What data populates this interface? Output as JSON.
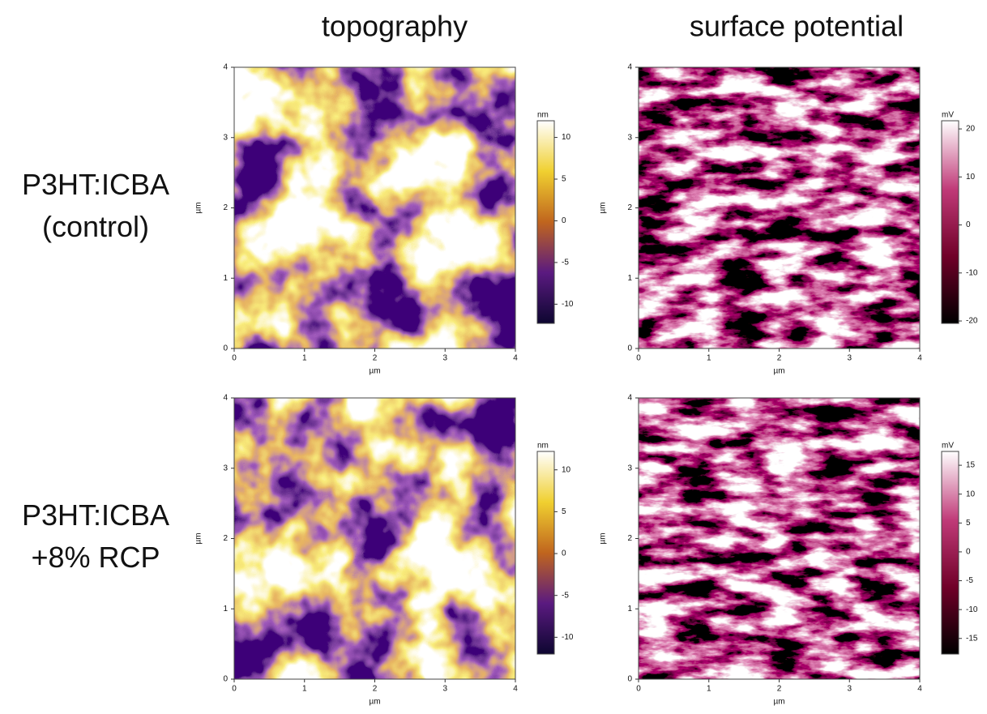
{
  "column_titles": [
    "topography",
    "surface potential"
  ],
  "rows": [
    {
      "label_lines": [
        "P3HT:ICBA",
        "(control)"
      ],
      "panels": [
        {
          "xlabel": "µm",
          "ylabel": "µm",
          "xlim": [
            0,
            4
          ],
          "ylim": [
            0,
            4
          ],
          "xticks": [
            0,
            1,
            2,
            3,
            4
          ],
          "yticks": [
            0,
            1,
            2,
            3,
            4
          ],
          "colorbar": {
            "unit": "nm",
            "lim": [
              -12.3,
              12
            ],
            "ticks": [
              -10,
              -5,
              0,
              5,
              10
            ]
          }
        },
        {
          "xlabel": "µm",
          "ylabel": "µm",
          "xlim": [
            0,
            4
          ],
          "ylim": [
            0,
            4
          ],
          "xticks": [
            0,
            1,
            2,
            3,
            4
          ],
          "yticks": [
            0,
            1,
            2,
            3,
            4
          ],
          "colorbar": {
            "unit": "mV",
            "lim": [
              -20.5,
              21.7
            ],
            "ticks": [
              -20,
              -10,
              0,
              10,
              20
            ]
          }
        }
      ]
    },
    {
      "label_lines": [
        "P3HT:ICBA",
        "+8% RCP"
      ],
      "panels": [
        {
          "xlabel": "µm",
          "ylabel": "µm",
          "xlim": [
            0,
            4
          ],
          "ylim": [
            0,
            4
          ],
          "xticks": [
            0,
            1,
            2,
            3,
            4
          ],
          "yticks": [
            0,
            1,
            2,
            3,
            4
          ],
          "colorbar": {
            "unit": "nm",
            "lim": [
              -12,
              12.2
            ],
            "ticks": [
              -10,
              -5,
              0,
              5,
              10
            ]
          }
        },
        {
          "xlabel": "µm",
          "ylabel": "µm",
          "xlim": [
            0,
            4
          ],
          "ylim": [
            0,
            4
          ],
          "xticks": [
            0,
            1,
            2,
            3,
            4
          ],
          "yticks": [
            0,
            1,
            2,
            3,
            4
          ],
          "colorbar": {
            "unit": "mV",
            "lim": [
              -17.7,
              17.4
            ],
            "ticks": [
              -15,
              -10,
              -5,
              0,
              5,
              10,
              15
            ]
          }
        }
      ]
    }
  ]
}
